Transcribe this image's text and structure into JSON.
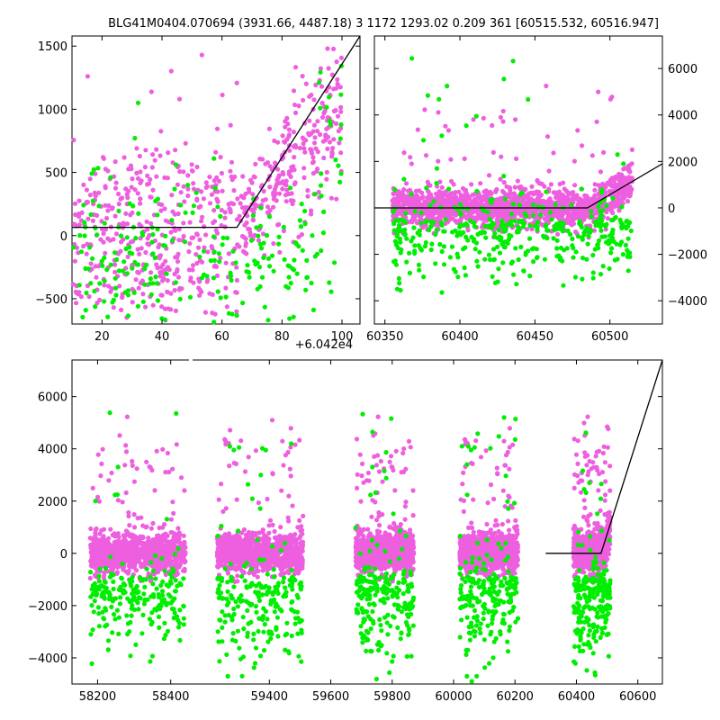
{
  "title": "BLG41M0404.070694 (3931.66, 4487.18)    3 1172 1293.02 0.209 361 [60515.532, 60516.947]",
  "colors": {
    "series_a": "#ee5fe0",
    "series_b": "#00ee00",
    "model": "#000000"
  },
  "chart_data": [
    {
      "type": "scatter",
      "panel": "top-left zoom",
      "xlim": [
        10,
        106
      ],
      "ylim": [
        -700,
        1580
      ],
      "xticks": [
        20,
        40,
        60,
        80,
        100
      ],
      "yticks": [
        -500,
        0,
        500,
        1000,
        1500
      ],
      "x_offset_label": "+6.042e4",
      "yaxis_side": "left",
      "model_line": [
        [
          10,
          65
        ],
        [
          65,
          65
        ],
        [
          106,
          1580
        ]
      ],
      "series": [
        {
          "color": "#ee5fe0",
          "count": 700,
          "description": "x across 10-100, scatter ~[-600,600] before x=65, rising trend after"
        },
        {
          "color": "#00ee00",
          "count": 260,
          "description": "x across 10-100, mostly [-700,300]"
        }
      ]
    },
    {
      "type": "scatter",
      "panel": "top-right",
      "xlim": [
        60343,
        60535
      ],
      "ylim": [
        -5000,
        7400
      ],
      "xticks": [
        60350,
        60400,
        60450,
        60500
      ],
      "yticks": [
        -4000,
        -2000,
        0,
        2000,
        4000,
        6000
      ],
      "yaxis_side": "right",
      "model_line": [
        [
          60343,
          0
        ],
        [
          60485,
          0
        ],
        [
          60535,
          1900
        ]
      ],
      "series": [
        {
          "color": "#ee5fe0",
          "count": 1600,
          "description": "dense band about 0 (±500), x 60355-60515, rise near end"
        },
        {
          "color": "#00ee00",
          "count": 420,
          "description": "mostly below 0 down to about -4500"
        }
      ]
    },
    {
      "type": "scatter",
      "panel": "bottom full baseline",
      "xlim": [
        58130,
        60680
      ],
      "ylim": [
        -5000,
        7400
      ],
      "xticks": [
        58200,
        58400,
        59400,
        59600,
        59800,
        60000,
        60200,
        60400,
        60600
      ],
      "yticks": [
        -4000,
        -2000,
        0,
        2000,
        4000,
        6000
      ],
      "broken_axis": true,
      "model_line": [
        [
          60300,
          0
        ],
        [
          60480,
          0
        ],
        [
          60680,
          7400
        ]
      ],
      "seasons": [
        [
          58180,
          58440
        ],
        [
          59230,
          59510
        ],
        [
          59680,
          59870
        ],
        [
          60020,
          60210
        ],
        [
          60390,
          60510
        ]
      ],
      "series": [
        {
          "color": "#ee5fe0",
          "description": "dense blobs per season about 0 (±900)"
        },
        {
          "color": "#00ee00",
          "description": "mostly negative values down to -4800"
        }
      ]
    }
  ]
}
